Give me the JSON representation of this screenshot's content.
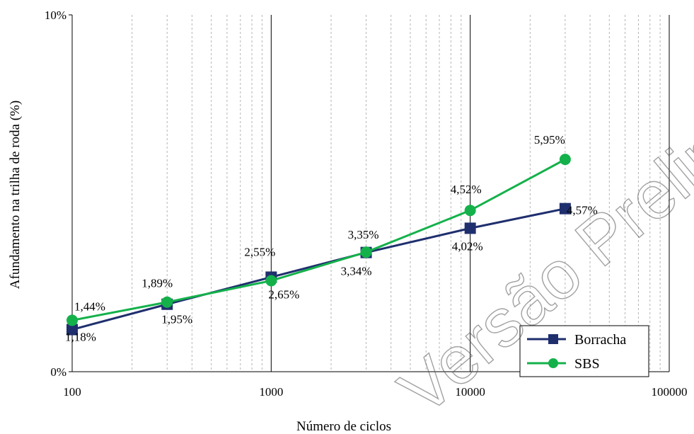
{
  "chart_data": {
    "type": "line",
    "title": "",
    "xlabel": "Número de ciclos",
    "ylabel": "Afundamento na trilha de roda (%)",
    "x_scale": "log",
    "xlim": [
      100,
      100000
    ],
    "ylim": [
      0,
      10
    ],
    "x_ticks": [
      "100",
      "1000",
      "10000",
      "100000"
    ],
    "y_ticks": [
      "0%",
      "10%"
    ],
    "grid": "vertical major and minor (log) gridlines",
    "legend_position": "bottom-right",
    "x": [
      100,
      300,
      1000,
      3000,
      10000,
      30000
    ],
    "series": [
      {
        "name": "Borracha",
        "color": "#1f2f6e",
        "marker": "square",
        "values": [
          1.18,
          1.89,
          2.65,
          3.34,
          4.02,
          4.57
        ],
        "labels": [
          "1,18%",
          "1,89%",
          "2,65%",
          "3,34%",
          "4,02%",
          "4,57%"
        ]
      },
      {
        "name": "SBS",
        "color": "#14b14b",
        "marker": "circle",
        "values": [
          1.44,
          1.95,
          2.55,
          3.35,
          4.52,
          5.95
        ],
        "labels": [
          "1,44%",
          "1,95%",
          "2,55%",
          "3,35%",
          "4,52%",
          "5,95%"
        ]
      }
    ],
    "watermark": "Versão Preliminar"
  }
}
